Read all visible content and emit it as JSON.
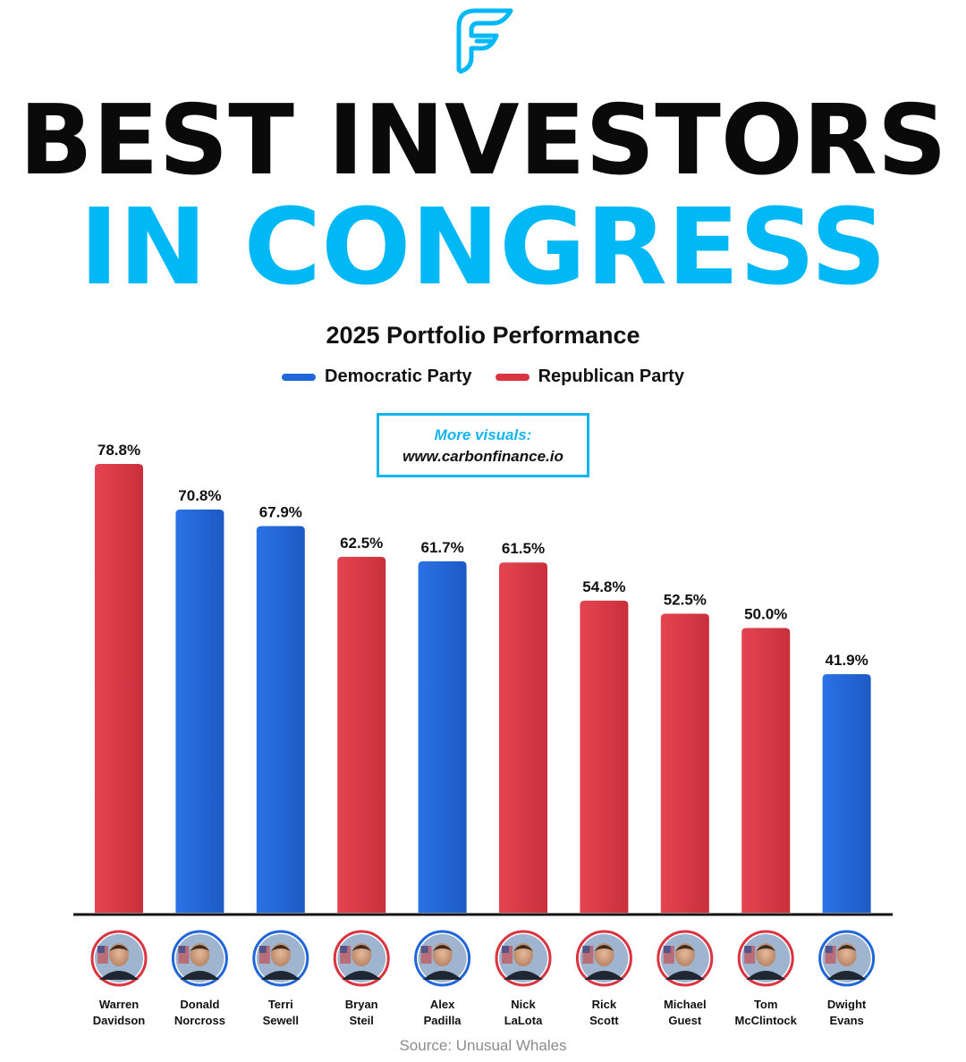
{
  "header": {
    "logo_icon": "carbon-finance-f-logo-icon",
    "title_line1": "BEST INVESTORS",
    "title_line2": "IN CONGRESS"
  },
  "chart_data": {
    "type": "bar",
    "title": "2025 Portfolio Performance",
    "xlabel": "",
    "ylabel": "",
    "ylim": [
      0,
      80
    ],
    "unit": "%",
    "legend": [
      {
        "name": "Democratic Party",
        "color": "#2166d8"
      },
      {
        "name": "Republican Party",
        "color": "#d93440"
      }
    ],
    "categories": [
      "Warren Davidson",
      "Donald Norcross",
      "Terri Sewell",
      "Bryan Steil",
      "Alex Padilla",
      "Nick LaLota",
      "Rick Scott",
      "Michael Guest",
      "Tom McClintock",
      "Dwight Evans"
    ],
    "values": [
      78.8,
      70.8,
      67.9,
      62.5,
      61.7,
      61.5,
      54.8,
      52.5,
      50.0,
      41.9
    ],
    "value_labels": [
      "78.8%",
      "70.8%",
      "67.9%",
      "62.5%",
      "61.7%",
      "61.5%",
      "54.8%",
      "52.5%",
      "50.0%",
      "41.9%"
    ],
    "party": [
      "Republican Party",
      "Democratic Party",
      "Democratic Party",
      "Republican Party",
      "Democratic Party",
      "Republican Party",
      "Republican Party",
      "Republican Party",
      "Republican Party",
      "Democratic Party"
    ],
    "name_lines": [
      [
        "Warren",
        "Davidson"
      ],
      [
        "Donald",
        "Norcross"
      ],
      [
        "Terri",
        "Sewell"
      ],
      [
        "Bryan",
        "Steil"
      ],
      [
        "Alex",
        "Padilla"
      ],
      [
        "Nick",
        "LaLota"
      ],
      [
        "Rick",
        "Scott"
      ],
      [
        "Michael",
        "Guest"
      ],
      [
        "Tom",
        "McClintock"
      ],
      [
        "Dwight",
        "Evans"
      ]
    ]
  },
  "promo": {
    "line1": "More visuals:",
    "line2": "www.carbonfinance.io"
  },
  "footer": {
    "source": "Source: Unusual Whales"
  },
  "colors": {
    "democratic": "#2166d8",
    "republican": "#d93440",
    "accent": "#00b8f5",
    "promo_border": "#14b4ee"
  }
}
